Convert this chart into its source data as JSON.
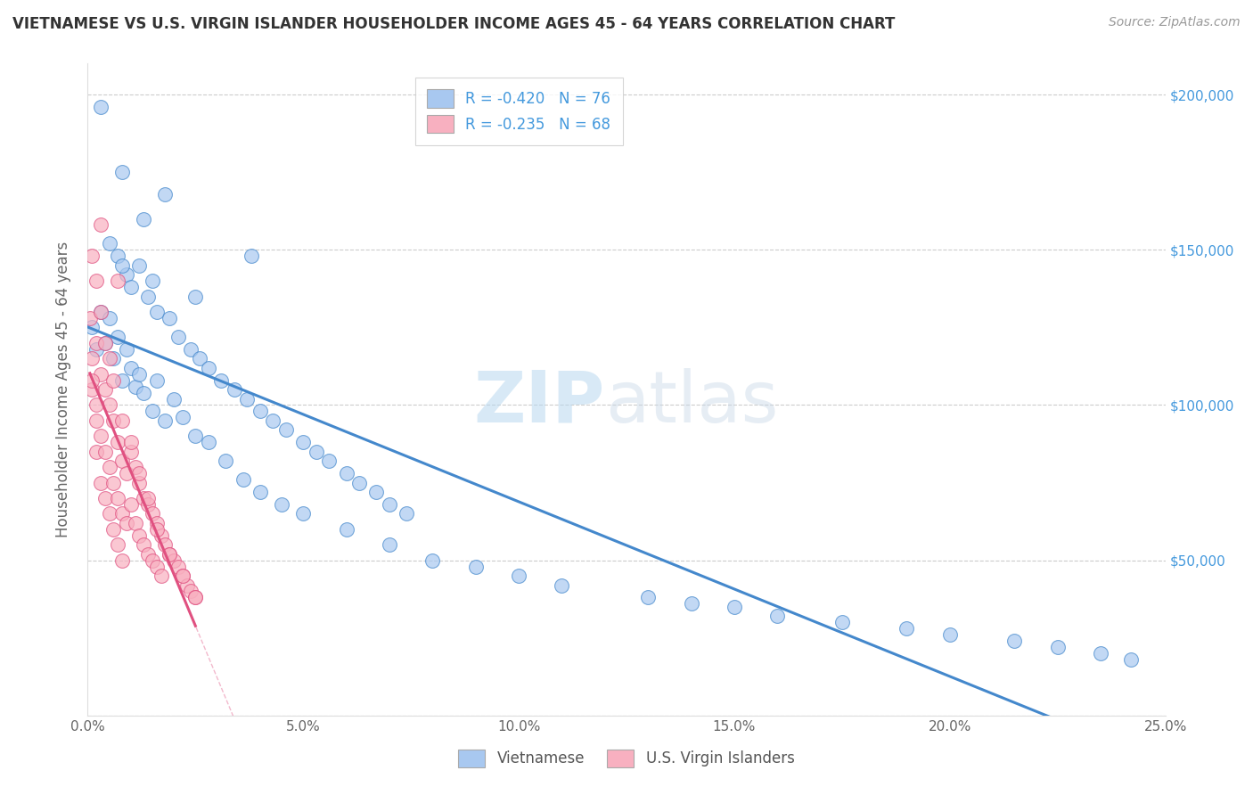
{
  "title": "VIETNAMESE VS U.S. VIRGIN ISLANDER HOUSEHOLDER INCOME AGES 45 - 64 YEARS CORRELATION CHART",
  "source": "Source: ZipAtlas.com",
  "ylabel": "Householder Income Ages 45 - 64 years",
  "xlim": [
    0.0,
    0.25
  ],
  "ylim": [
    0,
    210000
  ],
  "yticks": [
    0,
    50000,
    100000,
    150000,
    200000
  ],
  "ytick_labels": [
    "",
    "$50,000",
    "$100,000",
    "$150,000",
    "$200,000"
  ],
  "xticks": [
    0.0,
    0.05,
    0.1,
    0.15,
    0.2,
    0.25
  ],
  "xtick_labels": [
    "0.0%",
    "5.0%",
    "10.0%",
    "15.0%",
    "20.0%",
    "25.0%"
  ],
  "legend_R1": "-0.420",
  "legend_N1": "76",
  "legend_R2": "-0.235",
  "legend_N2": "68",
  "color_vietnamese": "#a8c8f0",
  "color_virgin_islander": "#f8b0c0",
  "color_line_vietnamese": "#4488cc",
  "color_line_virgin_islander": "#e05080",
  "watermark_zip": "ZIP",
  "watermark_atlas": "atlas",
  "viet_x": [
    0.003,
    0.008,
    0.013,
    0.018,
    0.005,
    0.007,
    0.009,
    0.01,
    0.012,
    0.014,
    0.016,
    0.019,
    0.021,
    0.024,
    0.026,
    0.028,
    0.031,
    0.034,
    0.037,
    0.04,
    0.043,
    0.046,
    0.05,
    0.053,
    0.056,
    0.06,
    0.063,
    0.067,
    0.07,
    0.074,
    0.001,
    0.002,
    0.003,
    0.004,
    0.005,
    0.006,
    0.007,
    0.008,
    0.009,
    0.01,
    0.011,
    0.012,
    0.013,
    0.015,
    0.016,
    0.018,
    0.02,
    0.022,
    0.025,
    0.028,
    0.032,
    0.036,
    0.04,
    0.045,
    0.05,
    0.06,
    0.07,
    0.08,
    0.09,
    0.1,
    0.11,
    0.13,
    0.14,
    0.15,
    0.16,
    0.175,
    0.19,
    0.2,
    0.215,
    0.225,
    0.235,
    0.242,
    0.008,
    0.015,
    0.025,
    0.038
  ],
  "viet_y": [
    196000,
    175000,
    160000,
    168000,
    152000,
    148000,
    142000,
    138000,
    145000,
    135000,
    130000,
    128000,
    122000,
    118000,
    115000,
    112000,
    108000,
    105000,
    102000,
    98000,
    95000,
    92000,
    88000,
    85000,
    82000,
    78000,
    75000,
    72000,
    68000,
    65000,
    125000,
    118000,
    130000,
    120000,
    128000,
    115000,
    122000,
    108000,
    118000,
    112000,
    106000,
    110000,
    104000,
    98000,
    108000,
    95000,
    102000,
    96000,
    90000,
    88000,
    82000,
    76000,
    72000,
    68000,
    65000,
    60000,
    55000,
    50000,
    48000,
    45000,
    42000,
    38000,
    36000,
    35000,
    32000,
    30000,
    28000,
    26000,
    24000,
    22000,
    20000,
    18000,
    145000,
    140000,
    135000,
    148000
  ],
  "vi_x": [
    0.0005,
    0.001,
    0.001,
    0.002,
    0.002,
    0.002,
    0.003,
    0.003,
    0.003,
    0.004,
    0.004,
    0.004,
    0.005,
    0.005,
    0.005,
    0.006,
    0.006,
    0.006,
    0.007,
    0.007,
    0.007,
    0.008,
    0.008,
    0.008,
    0.009,
    0.009,
    0.01,
    0.01,
    0.011,
    0.011,
    0.012,
    0.012,
    0.013,
    0.013,
    0.014,
    0.014,
    0.015,
    0.015,
    0.016,
    0.016,
    0.017,
    0.017,
    0.018,
    0.019,
    0.02,
    0.021,
    0.022,
    0.023,
    0.024,
    0.025,
    0.001,
    0.001,
    0.002,
    0.002,
    0.003,
    0.004,
    0.005,
    0.006,
    0.008,
    0.01,
    0.012,
    0.014,
    0.016,
    0.019,
    0.022,
    0.025,
    0.003,
    0.007
  ],
  "vi_y": [
    128000,
    115000,
    105000,
    120000,
    95000,
    85000,
    110000,
    90000,
    75000,
    105000,
    85000,
    70000,
    100000,
    80000,
    65000,
    95000,
    75000,
    60000,
    88000,
    70000,
    55000,
    82000,
    65000,
    50000,
    78000,
    62000,
    85000,
    68000,
    80000,
    62000,
    75000,
    58000,
    70000,
    55000,
    68000,
    52000,
    65000,
    50000,
    62000,
    48000,
    58000,
    45000,
    55000,
    52000,
    50000,
    48000,
    45000,
    42000,
    40000,
    38000,
    148000,
    108000,
    140000,
    100000,
    130000,
    120000,
    115000,
    108000,
    95000,
    88000,
    78000,
    70000,
    60000,
    52000,
    45000,
    38000,
    158000,
    140000
  ]
}
